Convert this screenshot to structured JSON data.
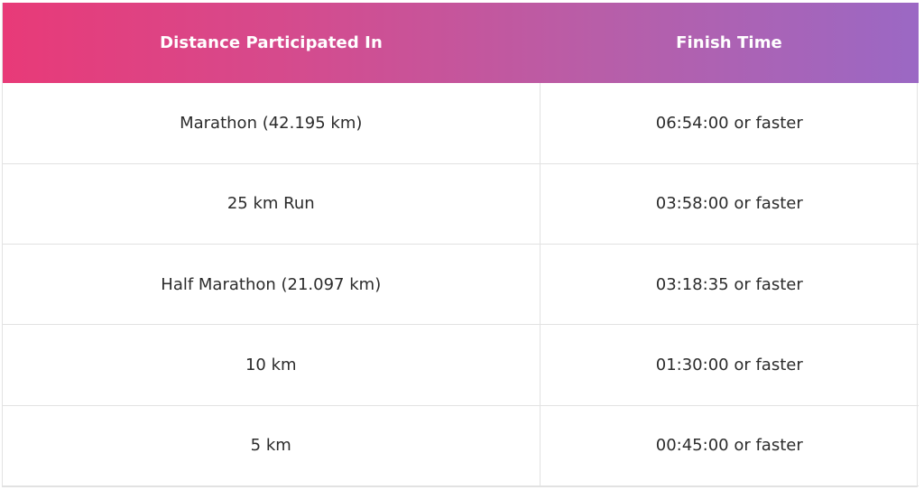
{
  "table": {
    "headers": {
      "distance": "Distance Participated In",
      "finish_time": "Finish Time"
    },
    "rows": [
      {
        "distance": "Marathon (42.195 km)",
        "finish_time": "06:54:00 or faster"
      },
      {
        "distance": "25 km Run",
        "finish_time": "03:58:00 or faster"
      },
      {
        "distance": "Half Marathon (21.097 km)",
        "finish_time": "03:18:35 or faster"
      },
      {
        "distance": "10 km",
        "finish_time": "01:30:00 or faster"
      },
      {
        "distance": "5 km",
        "finish_time": "00:45:00 or faster"
      }
    ]
  },
  "colors": {
    "header_gradient_start": "#e83a78",
    "header_gradient_end": "#9b68c4",
    "header_text": "#ffffff",
    "cell_text": "#2b2b2b",
    "grid_line": "#e2e2e2"
  }
}
